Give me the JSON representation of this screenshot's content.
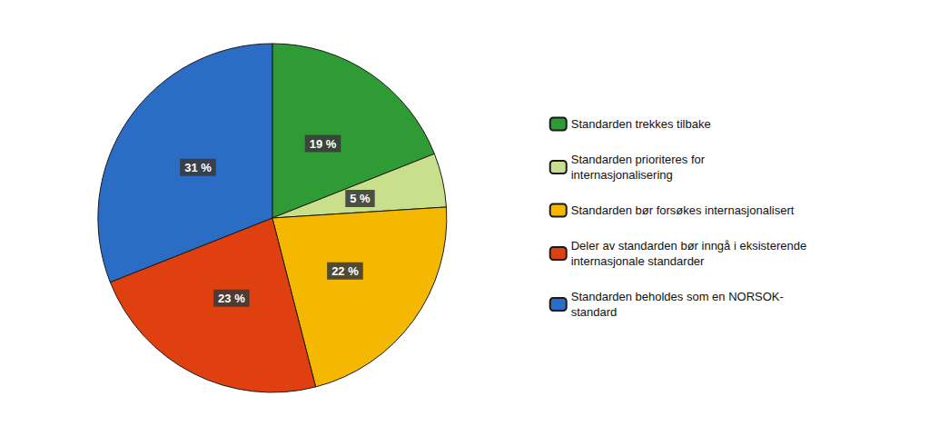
{
  "chart_data": {
    "type": "pie",
    "categories": [
      "Standarden trekkes tilbake",
      "Standarden prioriteres for\ninternasjonalisering",
      "Standarden bør forsøkes internasjonalisert",
      "Deler av standarden bør inngå i eksisterende\ninternasjonale standarder",
      "Standarden beholdes som en NORSOK-\nstandard"
    ],
    "values": [
      19,
      5,
      22,
      23,
      31
    ],
    "value_labels": [
      "19 %",
      "5 %",
      "22 %",
      "23 %",
      "31 %"
    ],
    "colors": [
      "#2E9B34",
      "#C8E08C",
      "#F5B800",
      "#E04010",
      "#2B6CC4"
    ],
    "data_labels": true,
    "legend": "right"
  }
}
